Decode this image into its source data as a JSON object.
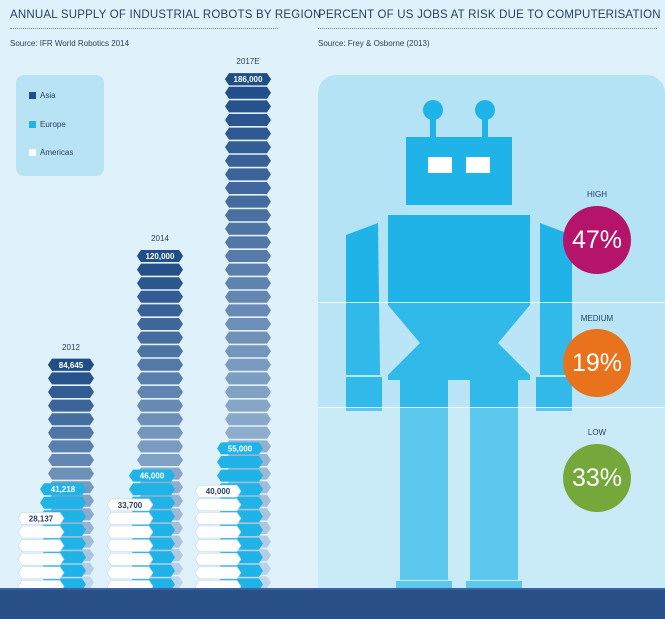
{
  "left": {
    "title": "ANNUAL SUPPLY OF INDUSTRIAL ROBOTS BY REGION",
    "source": "Source: IFR World Robotics 2014"
  },
  "right": {
    "title": "PERCENT OF US JOBS AT RISK DUE TO COMPUTERISATION",
    "source": "Source: Frey & Osborne (2013)"
  },
  "legend": {
    "asia": "Asia",
    "europe": "Europe",
    "americas": "Americas"
  },
  "colors": {
    "asia": "#1f4f86",
    "europe": "#1fb3e8",
    "americas": "#ffffff",
    "high": "#b5146a",
    "medium": "#e8731c",
    "low": "#75a83a",
    "robot": "#1fb3e8"
  },
  "chart_data": [
    {
      "type": "bar",
      "title": "ANNUAL SUPPLY OF INDUSTRIAL ROBOTS BY REGION",
      "categories": [
        "2012",
        "2014",
        "2017E"
      ],
      "series": [
        {
          "name": "Asia",
          "values": [
            84645,
            120000,
            186000
          ],
          "labels": [
            "84,645",
            "120,000",
            "186,000"
          ]
        },
        {
          "name": "Europe",
          "values": [
            41218,
            46000,
            55000
          ],
          "labels": [
            "41,218",
            "46,000",
            "55,000"
          ]
        },
        {
          "name": "Americas",
          "values": [
            28137,
            33700,
            40000
          ],
          "labels": [
            "28,137",
            "33,700",
            "40,000"
          ]
        }
      ],
      "legend_position": "top-left"
    },
    {
      "type": "table",
      "title": "PERCENT OF US JOBS AT RISK DUE TO COMPUTERISATION",
      "categories": [
        "HIGH",
        "MEDIUM",
        "LOW"
      ],
      "values": [
        47,
        19,
        33
      ],
      "labels": [
        "47%",
        "19%",
        "33%"
      ]
    }
  ]
}
